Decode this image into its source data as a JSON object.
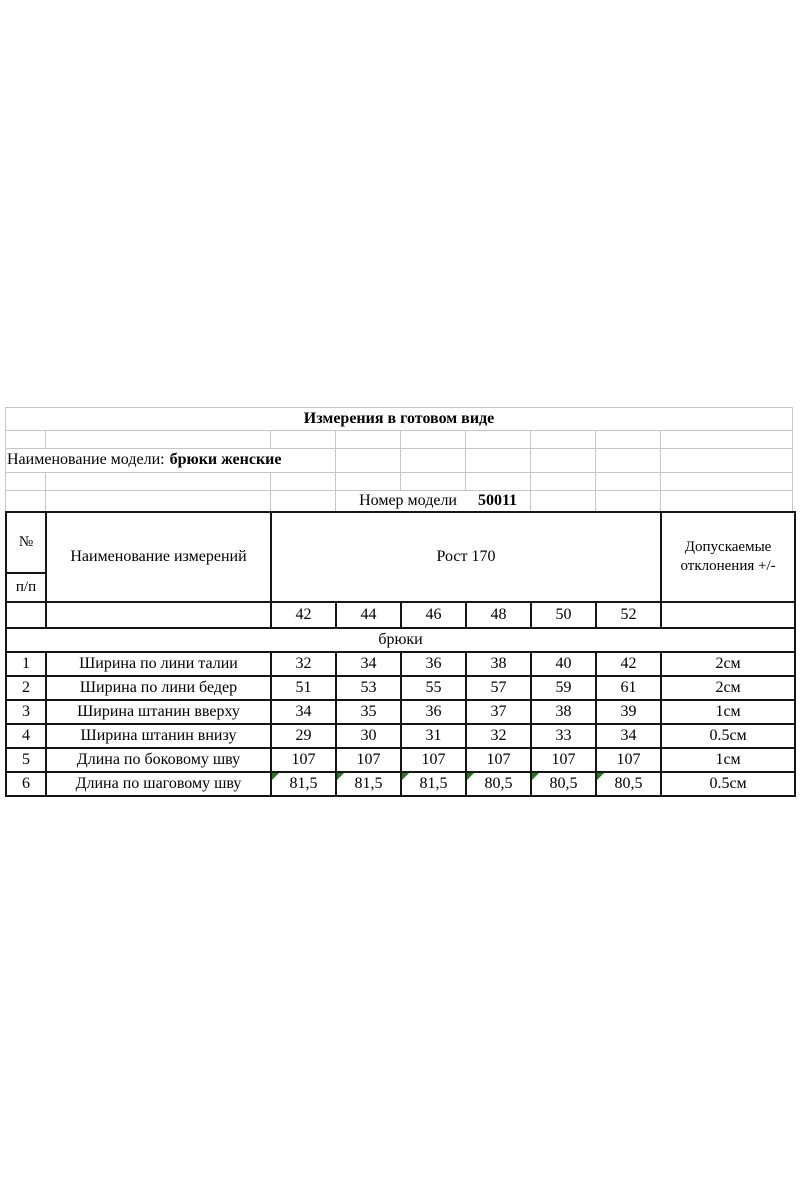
{
  "sheet": {
    "title": "Измерения в готовом виде",
    "model_label": "Наименование модели:",
    "model_value": "брюки женские",
    "model_number_label": "Номер модели",
    "model_number_value": "50011"
  },
  "table": {
    "col_no_line1": "№",
    "col_no_line2": "п/п",
    "col_name": "Наименование измерений",
    "col_growth": "Рост 170",
    "col_tolerance_line1": "Допускаемые",
    "col_tolerance_line2": "отклонения +/-",
    "sizes": [
      "42",
      "44",
      "46",
      "48",
      "50",
      "52"
    ],
    "group_label": "брюки",
    "rows": [
      {
        "no": "1",
        "name": "Ширина по лини талии",
        "values": [
          "32",
          "34",
          "36",
          "38",
          "40",
          "42"
        ],
        "tolerance": "2см"
      },
      {
        "no": "2",
        "name": "Ширина по лини бедер",
        "values": [
          "51",
          "53",
          "55",
          "57",
          "59",
          "61"
        ],
        "tolerance": "2см"
      },
      {
        "no": "3",
        "name": "Ширина штанин вверху",
        "values": [
          "34",
          "35",
          "36",
          "37",
          "38",
          "39"
        ],
        "tolerance": "1см"
      },
      {
        "no": "4",
        "name": "Ширина штанин внизу",
        "values": [
          "29",
          "30",
          "31",
          "32",
          "33",
          "34"
        ],
        "tolerance": "0.5см"
      },
      {
        "no": "5",
        "name": "Длина по боковому шву",
        "values": [
          "107",
          "107",
          "107",
          "107",
          "107",
          "107"
        ],
        "tolerance": "1см"
      },
      {
        "no": "6",
        "name": "Длина по шаговому шву",
        "values": [
          "81,5",
          "81,5",
          "81,5",
          "80,5",
          "80,5",
          "80,5"
        ],
        "tolerance": "0.5см"
      }
    ]
  },
  "colors": {
    "grid_light": "#c6c6c6",
    "table_border": "#161616",
    "flag_green": "#1e7d1e"
  }
}
